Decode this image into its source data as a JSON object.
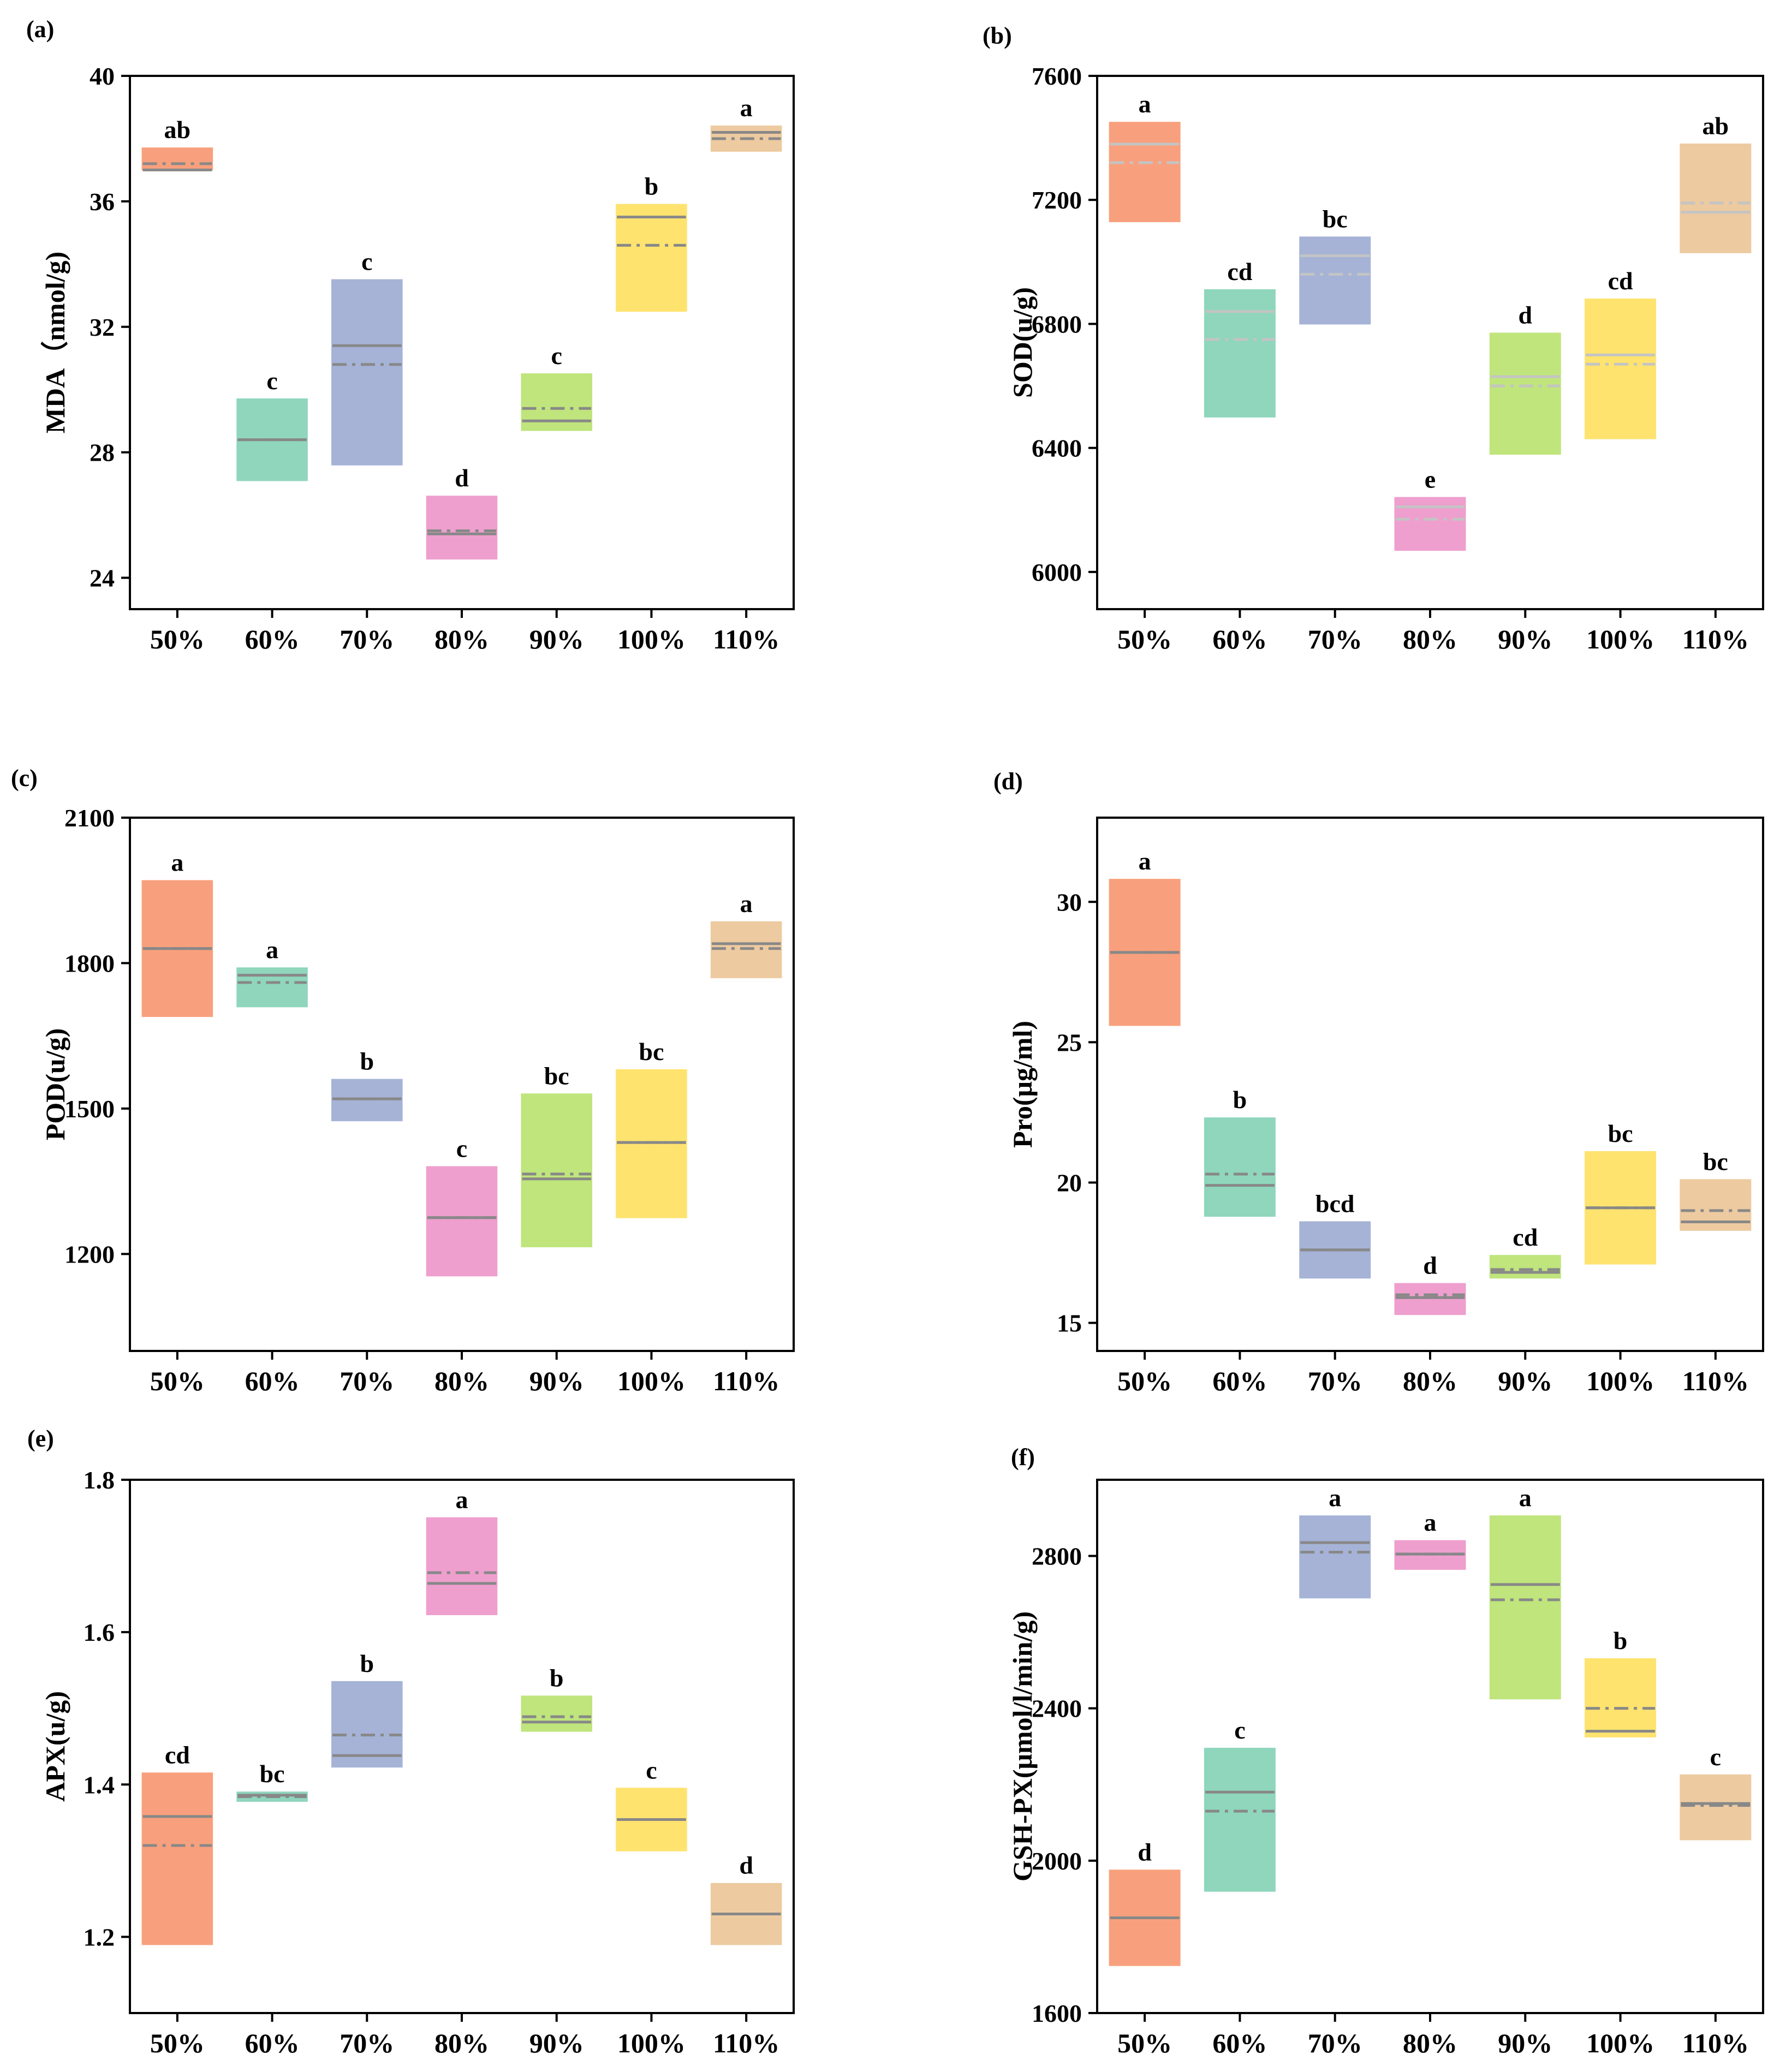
{
  "figure": {
    "panel_labels": [
      "(a)",
      "(b)",
      "(c)",
      "(d)",
      "(e)",
      "(f)"
    ]
  },
  "chart_data": [
    {
      "panel": "(a)",
      "type": "box",
      "ylabel": "MDA（nmol/g)",
      "ylim": [
        23,
        40
      ],
      "yticks": [
        24,
        28,
        32,
        36,
        40
      ],
      "categories": [
        "50%",
        "60%",
        "70%",
        "80%",
        "90%",
        "100%",
        "110%"
      ],
      "colors": [
        "#f8a07d",
        "#8fd6bd",
        "#a6b3d7",
        "#ee9fce",
        "#bfe57c",
        "#fee36f",
        "#edcaa0"
      ],
      "median_color": "#888888",
      "mean_color": "#888888",
      "boxes": [
        {
          "low": 37.0,
          "high": 37.7,
          "median": 37.0,
          "mean": 37.2,
          "label": "ab"
        },
        {
          "low": 27.1,
          "high": 29.7,
          "median": 28.4,
          "mean": 28.4,
          "label": "c"
        },
        {
          "low": 27.6,
          "high": 33.5,
          "median": 31.4,
          "mean": 30.8,
          "label": "c"
        },
        {
          "low": 24.6,
          "high": 26.6,
          "median": 25.4,
          "mean": 25.5,
          "label": "d"
        },
        {
          "low": 28.7,
          "high": 30.5,
          "median": 29.0,
          "mean": 29.4,
          "label": "c"
        },
        {
          "low": 32.5,
          "high": 35.9,
          "median": 35.5,
          "mean": 34.6,
          "label": "b"
        },
        {
          "low": 37.6,
          "high": 38.4,
          "median": 38.2,
          "mean": 38.0,
          "label": "a"
        }
      ]
    },
    {
      "panel": "(b)",
      "type": "box",
      "ylabel": "SOD(u/g)",
      "ylim": [
        5880,
        7600
      ],
      "yticks": [
        6000,
        6400,
        6800,
        7200,
        7600
      ],
      "categories": [
        "50%",
        "60%",
        "70%",
        "80%",
        "90%",
        "100%",
        "110%"
      ],
      "colors": [
        "#f8a07d",
        "#8fd6bd",
        "#a6b3d7",
        "#ee9fce",
        "#bfe57c",
        "#fee36f",
        "#edcaa0"
      ],
      "median_color": "#c4c4c4",
      "mean_color": "#c4c4c4",
      "boxes": [
        {
          "low": 7130,
          "high": 7450,
          "median": 7380,
          "mean": 7320,
          "label": "a"
        },
        {
          "low": 6500,
          "high": 6910,
          "median": 6840,
          "mean": 6750,
          "label": "cd"
        },
        {
          "low": 6800,
          "high": 7080,
          "median": 7020,
          "mean": 6960,
          "label": "bc"
        },
        {
          "low": 6070,
          "high": 6240,
          "median": 6210,
          "mean": 6170,
          "label": "e"
        },
        {
          "low": 6380,
          "high": 6770,
          "median": 6630,
          "mean": 6600,
          "label": "d"
        },
        {
          "low": 6430,
          "high": 6880,
          "median": 6700,
          "mean": 6670,
          "label": "cd"
        },
        {
          "low": 7030,
          "high": 7380,
          "median": 7160,
          "mean": 7190,
          "label": "ab"
        }
      ]
    },
    {
      "panel": "(c)",
      "type": "box",
      "ylabel": "POD(u/g)",
      "ylim": [
        1000,
        2100
      ],
      "yticks": [
        1200,
        1500,
        1800,
        2100
      ],
      "categories": [
        "50%",
        "60%",
        "70%",
        "80%",
        "90%",
        "100%",
        "110%"
      ],
      "colors": [
        "#f8a07d",
        "#8fd6bd",
        "#a6b3d7",
        "#ee9fce",
        "#bfe57c",
        "#fee36f",
        "#edcaa0"
      ],
      "median_color": "#888888",
      "mean_color": "#888888",
      "boxes": [
        {
          "low": 1690,
          "high": 1970,
          "median": 1830,
          "mean": 1830,
          "label": "a"
        },
        {
          "low": 1710,
          "high": 1790,
          "median": 1775,
          "mean": 1760,
          "label": "a"
        },
        {
          "low": 1475,
          "high": 1560,
          "median": 1520,
          "mean": 1520,
          "label": "b"
        },
        {
          "low": 1155,
          "high": 1380,
          "median": 1275,
          "mean": 1275,
          "label": "c"
        },
        {
          "low": 1215,
          "high": 1530,
          "median": 1355,
          "mean": 1365,
          "label": "bc"
        },
        {
          "low": 1275,
          "high": 1580,
          "median": 1430,
          "mean": 1430,
          "label": "bc"
        },
        {
          "low": 1770,
          "high": 1885,
          "median": 1840,
          "mean": 1830,
          "label": "a"
        }
      ]
    },
    {
      "panel": "(d)",
      "type": "box",
      "ylabel": "Pro(μg/ml)",
      "ylim": [
        14,
        33
      ],
      "yticks": [
        15,
        20,
        25,
        30
      ],
      "categories": [
        "50%",
        "60%",
        "70%",
        "80%",
        "90%",
        "100%",
        "110%"
      ],
      "colors": [
        "#f8a07d",
        "#8fd6bd",
        "#a6b3d7",
        "#ee9fce",
        "#bfe57c",
        "#fee36f",
        "#edcaa0"
      ],
      "median_color": "#888888",
      "mean_color": "#888888",
      "boxes": [
        {
          "low": 25.6,
          "high": 30.8,
          "median": 28.2,
          "mean": 28.2,
          "label": "a"
        },
        {
          "low": 18.8,
          "high": 22.3,
          "median": 19.9,
          "mean": 20.3,
          "label": "b"
        },
        {
          "low": 16.6,
          "high": 18.6,
          "median": 17.6,
          "mean": 17.6,
          "label": "bcd"
        },
        {
          "low": 15.3,
          "high": 16.4,
          "median": 15.9,
          "mean": 16.0,
          "label": "d"
        },
        {
          "low": 16.6,
          "high": 17.4,
          "median": 16.8,
          "mean": 16.9,
          "label": "cd"
        },
        {
          "low": 17.1,
          "high": 21.1,
          "median": 19.1,
          "mean": 19.1,
          "label": "bc"
        },
        {
          "low": 18.3,
          "high": 20.1,
          "median": 18.6,
          "mean": 19.0,
          "label": "bc"
        }
      ]
    },
    {
      "panel": "(e)",
      "type": "box",
      "ylabel": "APX(u/g)",
      "ylim": [
        1.1,
        1.8
      ],
      "yticks": [
        1.2,
        1.4,
        1.6,
        1.8
      ],
      "categories": [
        "50%",
        "60%",
        "70%",
        "80%",
        "90%",
        "100%",
        "110%"
      ],
      "colors": [
        "#f8a07d",
        "#8fd6bd",
        "#a6b3d7",
        "#ee9fce",
        "#bfe57c",
        "#fee36f",
        "#edcaa0"
      ],
      "median_color": "#888888",
      "mean_color": "#888888",
      "boxes": [
        {
          "low": 1.19,
          "high": 1.415,
          "median": 1.358,
          "mean": 1.32,
          "label": "cd"
        },
        {
          "low": 1.378,
          "high": 1.39,
          "median": 1.386,
          "mean": 1.384,
          "label": "bc"
        },
        {
          "low": 1.423,
          "high": 1.535,
          "median": 1.438,
          "mean": 1.465,
          "label": "b"
        },
        {
          "low": 1.623,
          "high": 1.75,
          "median": 1.664,
          "mean": 1.678,
          "label": "a"
        },
        {
          "low": 1.47,
          "high": 1.516,
          "median": 1.482,
          "mean": 1.489,
          "label": "b"
        },
        {
          "low": 1.313,
          "high": 1.395,
          "median": 1.354,
          "mean": 1.354,
          "label": "c"
        },
        {
          "low": 1.19,
          "high": 1.27,
          "median": 1.23,
          "mean": 1.23,
          "label": "d"
        }
      ]
    },
    {
      "panel": "(f)",
      "type": "box",
      "ylabel": "GSH-PX(μmol/l/min/g)",
      "ylim": [
        1600,
        3000
      ],
      "yticks": [
        1600,
        2000,
        2400,
        2800
      ],
      "categories": [
        "50%",
        "60%",
        "70%",
        "80%",
        "90%",
        "100%",
        "110%"
      ],
      "colors": [
        "#f8a07d",
        "#8fd6bd",
        "#a6b3d7",
        "#ee9fce",
        "#bfe57c",
        "#fee36f",
        "#edcaa0"
      ],
      "median_color": "#888888",
      "mean_color": "#888888",
      "boxes": [
        {
          "low": 1725,
          "high": 1975,
          "median": 1850,
          "mean": 1850,
          "label": "d"
        },
        {
          "low": 1920,
          "high": 2295,
          "median": 2180,
          "mean": 2130,
          "label": "c"
        },
        {
          "low": 2690,
          "high": 2905,
          "median": 2835,
          "mean": 2810,
          "label": "a"
        },
        {
          "low": 2765,
          "high": 2840,
          "median": 2805,
          "mean": 2805,
          "label": "a"
        },
        {
          "low": 2425,
          "high": 2905,
          "median": 2725,
          "mean": 2685,
          "label": "a"
        },
        {
          "low": 2325,
          "high": 2530,
          "median": 2340,
          "mean": 2400,
          "label": "b"
        },
        {
          "low": 2055,
          "high": 2225,
          "median": 2150,
          "mean": 2145,
          "label": "c"
        }
      ]
    }
  ]
}
